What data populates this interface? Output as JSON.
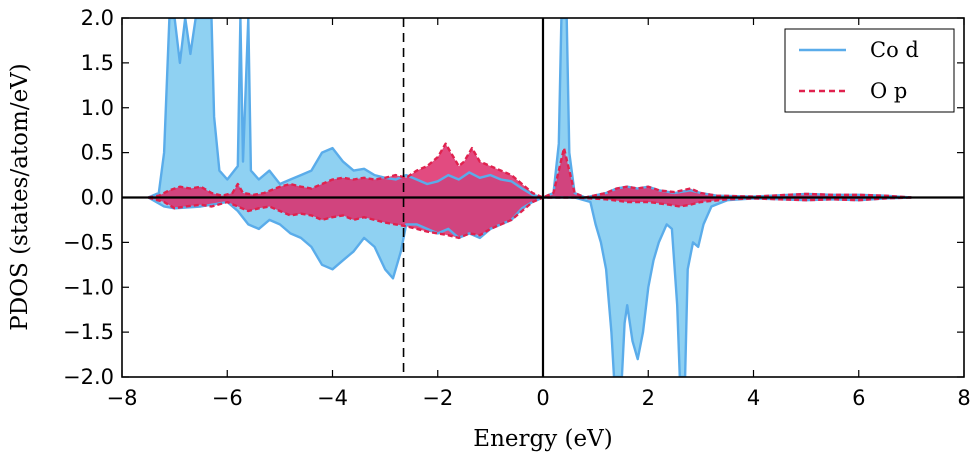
{
  "chart_data": {
    "type": "area",
    "title": "",
    "xlabel": "Energy (eV)",
    "ylabel": "PDOS (states/atom/eV)",
    "xlim": [
      -8,
      8
    ],
    "ylim": [
      -2.0,
      2.0
    ],
    "xticks": [
      "−8",
      "−6",
      "−4",
      "−2",
      "0",
      "2",
      "4",
      "6",
      "8"
    ],
    "yticks": [
      "2.0",
      "1.5",
      "1.0",
      "0.5",
      "0.0",
      "−0.5",
      "−1.0",
      "−1.5",
      "−2.0"
    ],
    "grid": false,
    "legend_position": "top-right",
    "reference_lines": [
      {
        "x": 0,
        "style": "solid"
      },
      {
        "x": -2.65,
        "style": "dashed"
      },
      {
        "y": 0,
        "style": "solid"
      }
    ],
    "series": [
      {
        "name": "Co d",
        "line_color": "#5aacea",
        "fill_color": "#8fd1f2",
        "line_style": "solid",
        "up": [
          [
            -7.5,
            0
          ],
          [
            -7.3,
            0.05
          ],
          [
            -7.2,
            0.5
          ],
          [
            -7.1,
            2.0
          ],
          [
            -7.0,
            2.0
          ],
          [
            -6.9,
            1.5
          ],
          [
            -6.8,
            2.0
          ],
          [
            -6.7,
            1.6
          ],
          [
            -6.6,
            2.0
          ],
          [
            -6.3,
            2.0
          ],
          [
            -6.25,
            0.9
          ],
          [
            -6.15,
            0.3
          ],
          [
            -6.0,
            0.2
          ],
          [
            -5.8,
            0.35
          ],
          [
            -5.75,
            2.0
          ],
          [
            -5.7,
            0.4
          ],
          [
            -5.6,
            2.0
          ],
          [
            -5.55,
            0.3
          ],
          [
            -5.4,
            0.2
          ],
          [
            -5.2,
            0.3
          ],
          [
            -5.0,
            0.15
          ],
          [
            -4.8,
            0.2
          ],
          [
            -4.6,
            0.25
          ],
          [
            -4.4,
            0.3
          ],
          [
            -4.2,
            0.5
          ],
          [
            -4.0,
            0.55
          ],
          [
            -3.8,
            0.4
          ],
          [
            -3.6,
            0.3
          ],
          [
            -3.4,
            0.32
          ],
          [
            -3.2,
            0.25
          ],
          [
            -3.0,
            0.22
          ],
          [
            -2.8,
            0.2
          ],
          [
            -2.6,
            0.25
          ],
          [
            -2.4,
            0.2
          ],
          [
            -2.2,
            0.15
          ],
          [
            -2.0,
            0.18
          ],
          [
            -1.8,
            0.25
          ],
          [
            -1.6,
            0.2
          ],
          [
            -1.4,
            0.28
          ],
          [
            -1.2,
            0.22
          ],
          [
            -1.0,
            0.25
          ],
          [
            -0.8,
            0.2
          ],
          [
            -0.6,
            0.18
          ],
          [
            -0.4,
            0.1
          ],
          [
            -0.2,
            0.03
          ],
          [
            0,
            0
          ],
          [
            0.2,
            0.05
          ],
          [
            0.3,
            0.6
          ],
          [
            0.35,
            2.0
          ],
          [
            0.45,
            2.0
          ],
          [
            0.5,
            0.5
          ],
          [
            0.6,
            0.05
          ],
          [
            0.8,
            0
          ],
          [
            1.2,
            0.05
          ],
          [
            1.4,
            0.1
          ],
          [
            1.6,
            0.12
          ],
          [
            1.8,
            0.1
          ],
          [
            2.0,
            0.12
          ],
          [
            2.2,
            0.08
          ],
          [
            2.5,
            0.05
          ],
          [
            2.8,
            0.08
          ],
          [
            3.0,
            0.05
          ],
          [
            3.3,
            0.02
          ],
          [
            4.0,
            0.01
          ],
          [
            5.0,
            0.04
          ],
          [
            5.5,
            0.03
          ],
          [
            6.0,
            0.03
          ],
          [
            6.5,
            0.02
          ],
          [
            7.0,
            0
          ]
        ],
        "down": [
          [
            -7.5,
            0
          ],
          [
            -7.2,
            -0.1
          ],
          [
            -7.0,
            -0.12
          ],
          [
            -6.5,
            -0.1
          ],
          [
            -6.0,
            -0.05
          ],
          [
            -5.8,
            -0.15
          ],
          [
            -5.6,
            -0.3
          ],
          [
            -5.4,
            -0.35
          ],
          [
            -5.2,
            -0.25
          ],
          [
            -5.0,
            -0.3
          ],
          [
            -4.8,
            -0.4
          ],
          [
            -4.6,
            -0.45
          ],
          [
            -4.4,
            -0.55
          ],
          [
            -4.2,
            -0.75
          ],
          [
            -4.0,
            -0.8
          ],
          [
            -3.8,
            -0.7
          ],
          [
            -3.6,
            -0.6
          ],
          [
            -3.4,
            -0.45
          ],
          [
            -3.2,
            -0.55
          ],
          [
            -3.0,
            -0.8
          ],
          [
            -2.85,
            -0.9
          ],
          [
            -2.7,
            -0.6
          ],
          [
            -2.6,
            -0.3
          ],
          [
            -2.4,
            -0.3
          ],
          [
            -2.2,
            -0.35
          ],
          [
            -2.0,
            -0.4
          ],
          [
            -1.8,
            -0.35
          ],
          [
            -1.6,
            -0.45
          ],
          [
            -1.4,
            -0.4
          ],
          [
            -1.2,
            -0.45
          ],
          [
            -1.0,
            -0.35
          ],
          [
            -0.8,
            -0.3
          ],
          [
            -0.6,
            -0.25
          ],
          [
            -0.4,
            -0.12
          ],
          [
            -0.2,
            -0.05
          ],
          [
            0,
            0
          ],
          [
            0.6,
            0
          ],
          [
            0.9,
            -0.05
          ],
          [
            1.0,
            -0.3
          ],
          [
            1.1,
            -0.5
          ],
          [
            1.2,
            -0.8
          ],
          [
            1.3,
            -1.5
          ],
          [
            1.35,
            -2.0
          ],
          [
            1.5,
            -2.0
          ],
          [
            1.55,
            -1.4
          ],
          [
            1.6,
            -1.2
          ],
          [
            1.7,
            -1.6
          ],
          [
            1.8,
            -1.8
          ],
          [
            1.9,
            -1.5
          ],
          [
            2.0,
            -1.0
          ],
          [
            2.1,
            -0.7
          ],
          [
            2.2,
            -0.5
          ],
          [
            2.35,
            -0.3
          ],
          [
            2.45,
            -0.35
          ],
          [
            2.55,
            -1.2
          ],
          [
            2.6,
            -2.0
          ],
          [
            2.7,
            -2.0
          ],
          [
            2.75,
            -0.8
          ],
          [
            2.85,
            -0.5
          ],
          [
            2.95,
            -0.55
          ],
          [
            3.05,
            -0.3
          ],
          [
            3.2,
            -0.1
          ],
          [
            3.5,
            -0.03
          ],
          [
            4.0,
            -0.01
          ],
          [
            5.0,
            -0.03
          ],
          [
            5.5,
            -0.02
          ],
          [
            6.0,
            -0.03
          ],
          [
            6.5,
            -0.01
          ],
          [
            7.0,
            0
          ]
        ]
      },
      {
        "name": "O p",
        "line_color": "#e0224e",
        "fill_color": "#dd2c6a",
        "line_style": "dashed",
        "up": [
          [
            -7.5,
            0
          ],
          [
            -7.3,
            0.02
          ],
          [
            -7.1,
            0.08
          ],
          [
            -6.9,
            0.12
          ],
          [
            -6.7,
            0.1
          ],
          [
            -6.5,
            0.12
          ],
          [
            -6.3,
            0.05
          ],
          [
            -6.1,
            0.02
          ],
          [
            -5.9,
            0.05
          ],
          [
            -5.8,
            0.15
          ],
          [
            -5.7,
            0.05
          ],
          [
            -5.5,
            0.03
          ],
          [
            -5.3,
            0.05
          ],
          [
            -5.0,
            0.12
          ],
          [
            -4.8,
            0.15
          ],
          [
            -4.6,
            0.12
          ],
          [
            -4.4,
            0.1
          ],
          [
            -4.2,
            0.15
          ],
          [
            -4.0,
            0.2
          ],
          [
            -3.8,
            0.22
          ],
          [
            -3.6,
            0.2
          ],
          [
            -3.4,
            0.22
          ],
          [
            -3.2,
            0.2
          ],
          [
            -3.0,
            0.22
          ],
          [
            -2.8,
            0.25
          ],
          [
            -2.6,
            0.22
          ],
          [
            -2.4,
            0.3
          ],
          [
            -2.2,
            0.35
          ],
          [
            -2.0,
            0.45
          ],
          [
            -1.85,
            0.6
          ],
          [
            -1.7,
            0.45
          ],
          [
            -1.6,
            0.35
          ],
          [
            -1.5,
            0.4
          ],
          [
            -1.35,
            0.55
          ],
          [
            -1.2,
            0.4
          ],
          [
            -1.0,
            0.35
          ],
          [
            -0.8,
            0.3
          ],
          [
            -0.6,
            0.25
          ],
          [
            -0.4,
            0.15
          ],
          [
            -0.2,
            0.05
          ],
          [
            0,
            0
          ],
          [
            0.2,
            0.05
          ],
          [
            0.3,
            0.3
          ],
          [
            0.4,
            0.55
          ],
          [
            0.5,
            0.3
          ],
          [
            0.6,
            0.05
          ],
          [
            0.8,
            0
          ],
          [
            1.2,
            0.05
          ],
          [
            1.4,
            0.1
          ],
          [
            1.6,
            0.12
          ],
          [
            1.8,
            0.1
          ],
          [
            2.0,
            0.12
          ],
          [
            2.2,
            0.08
          ],
          [
            2.5,
            0.06
          ],
          [
            2.8,
            0.1
          ],
          [
            3.0,
            0.05
          ],
          [
            3.3,
            0.02
          ],
          [
            4.0,
            0.01
          ],
          [
            5.0,
            0.04
          ],
          [
            5.5,
            0.03
          ],
          [
            6.0,
            0.03
          ],
          [
            6.5,
            0.02
          ],
          [
            7.0,
            0
          ]
        ],
        "down": [
          [
            -7.5,
            0
          ],
          [
            -7.2,
            -0.05
          ],
          [
            -7.0,
            -0.12
          ],
          [
            -6.8,
            -0.1
          ],
          [
            -6.5,
            -0.08
          ],
          [
            -6.3,
            -0.1
          ],
          [
            -6.0,
            -0.05
          ],
          [
            -5.8,
            -0.1
          ],
          [
            -5.6,
            -0.15
          ],
          [
            -5.4,
            -0.12
          ],
          [
            -5.2,
            -0.1
          ],
          [
            -5.0,
            -0.15
          ],
          [
            -4.8,
            -0.2
          ],
          [
            -4.6,
            -0.18
          ],
          [
            -4.4,
            -0.2
          ],
          [
            -4.2,
            -0.25
          ],
          [
            -4.0,
            -0.22
          ],
          [
            -3.8,
            -0.2
          ],
          [
            -3.6,
            -0.25
          ],
          [
            -3.4,
            -0.22
          ],
          [
            -3.2,
            -0.25
          ],
          [
            -3.0,
            -0.28
          ],
          [
            -2.8,
            -0.3
          ],
          [
            -2.6,
            -0.32
          ],
          [
            -2.4,
            -0.35
          ],
          [
            -2.2,
            -0.38
          ],
          [
            -2.0,
            -0.4
          ],
          [
            -1.8,
            -0.42
          ],
          [
            -1.6,
            -0.45
          ],
          [
            -1.4,
            -0.4
          ],
          [
            -1.2,
            -0.42
          ],
          [
            -1.0,
            -0.35
          ],
          [
            -0.8,
            -0.3
          ],
          [
            -0.6,
            -0.25
          ],
          [
            -0.4,
            -0.15
          ],
          [
            -0.2,
            -0.05
          ],
          [
            0,
            0
          ],
          [
            0.6,
            0
          ],
          [
            1.2,
            -0.02
          ],
          [
            1.6,
            -0.05
          ],
          [
            2.0,
            -0.05
          ],
          [
            2.4,
            -0.08
          ],
          [
            2.6,
            -0.1
          ],
          [
            2.8,
            -0.08
          ],
          [
            3.0,
            -0.05
          ],
          [
            3.5,
            -0.02
          ],
          [
            4.0,
            -0.01
          ],
          [
            5.0,
            -0.03
          ],
          [
            5.5,
            -0.02
          ],
          [
            6.0,
            -0.03
          ],
          [
            6.5,
            -0.01
          ],
          [
            7.0,
            0
          ]
        ]
      }
    ]
  }
}
